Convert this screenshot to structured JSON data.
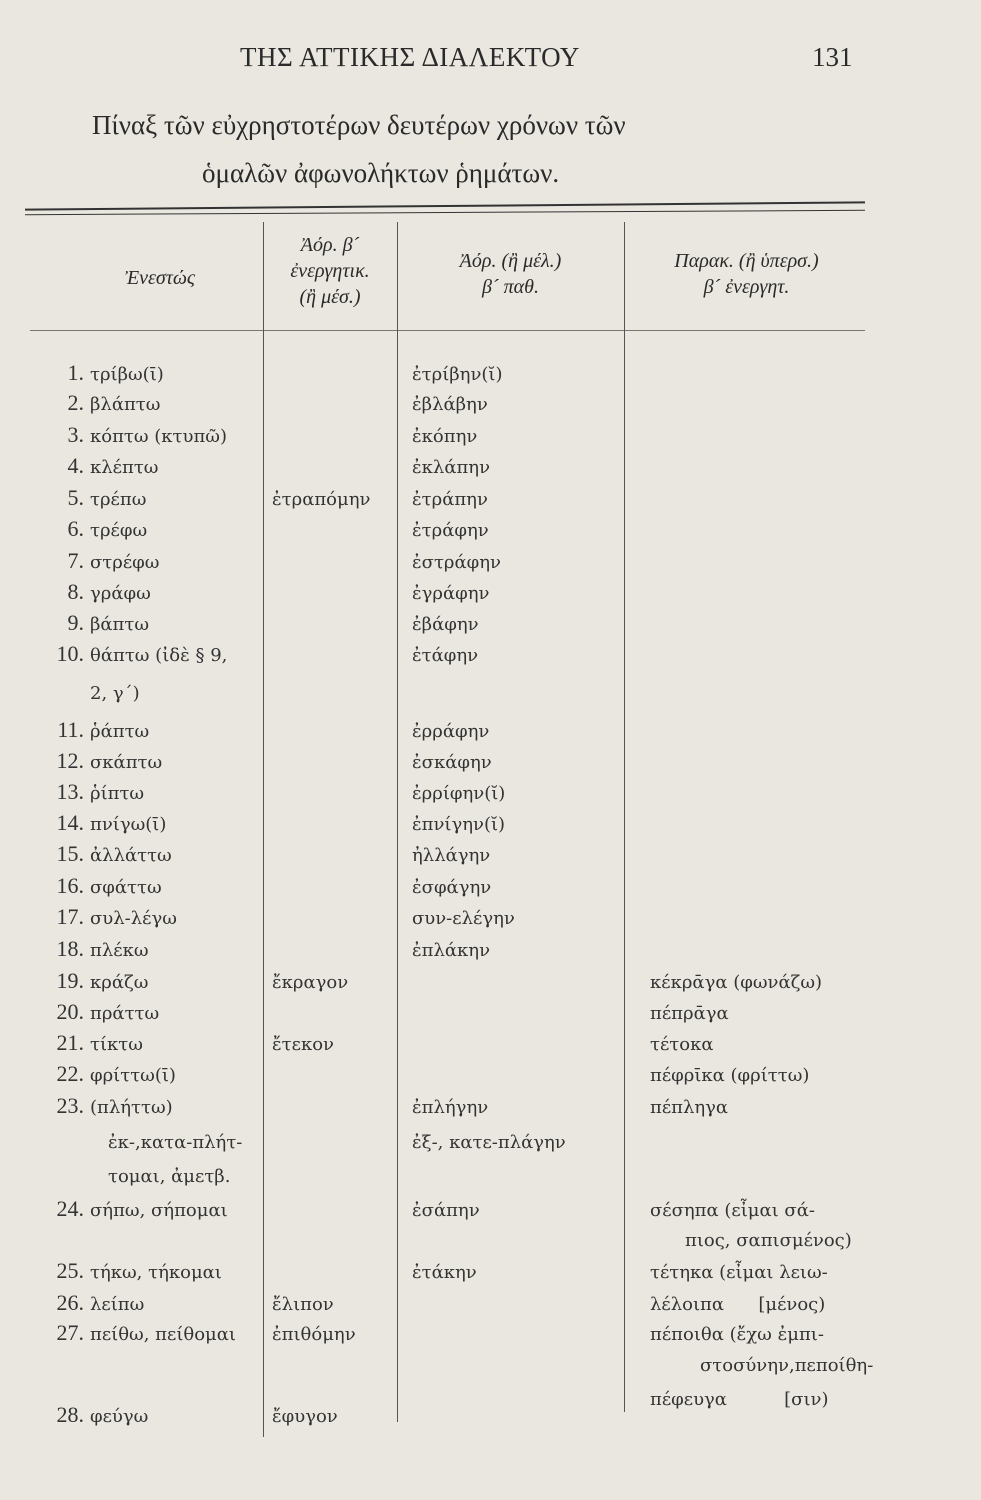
{
  "running_head": "ΤΗΣ ΑΤΤΙΚΗΣ ΔΙΑΛΕΚΤΟΥ",
  "page_number": "131",
  "title_line1": "Πίναξ τῶν εὐχρηστοτέρων δευτέρων χρόνων τῶν",
  "title_line2": "ὁμαλῶν ἀφωνολήκτων ῥημάτων.",
  "headers": {
    "present": "Ἐνεστώς",
    "aorist_active": [
      "Ἀόρ. β´",
      "ἐνεργητικ.",
      "(ἢ μέσ.)"
    ],
    "aorist_passive": [
      "Ἀόρ. (ἢ μέλ.)",
      "β´ παθ."
    ],
    "perfect": [
      "Παρακ. (ἢ ὑπερσ.)",
      "β´ ἐνεργητ."
    ]
  },
  "lines": [
    {
      "num": "1.",
      "present": "τρίβω(ῑ)",
      "aor_act": "",
      "aor_pass": "ἐτρίβην(ῐ)",
      "perfect": ""
    },
    {
      "num": "2.",
      "present": "βλάπτω",
      "aor_act": "",
      "aor_pass": "ἐβλάβην",
      "perfect": ""
    },
    {
      "num": "3.",
      "present": "κόπτω (κτυπῶ)",
      "aor_act": "",
      "aor_pass": "ἐκόπην",
      "perfect": ""
    },
    {
      "num": "4.",
      "present": "κλέπτω",
      "aor_act": "",
      "aor_pass": "ἐκλάπην",
      "perfect": ""
    },
    {
      "num": "5.",
      "present": "τρέπω",
      "aor_act": "ἐτραπόμην",
      "aor_pass": "ἐτράπην",
      "perfect": ""
    },
    {
      "num": "6.",
      "present": "τρέφω",
      "aor_act": "",
      "aor_pass": "ἐτράφην",
      "perfect": ""
    },
    {
      "num": "7.",
      "present": "στρέφω",
      "aor_act": "",
      "aor_pass": "ἐστράφην",
      "perfect": ""
    },
    {
      "num": "8.",
      "present": "γράφω",
      "aor_act": "",
      "aor_pass": "ἐγράφην",
      "perfect": ""
    },
    {
      "num": "9.",
      "present": "βάπτω",
      "aor_act": "",
      "aor_pass": "ἐβάφην",
      "perfect": ""
    },
    {
      "num": "10.",
      "present": "θάπτω (ἰδὲ § 9,",
      "aor_act": "",
      "aor_pass": "ἐτάφην",
      "perfect": ""
    },
    {
      "num": "",
      "present": "2, γ´)",
      "aor_act": "",
      "aor_pass": "",
      "perfect": ""
    },
    {
      "num": "11.",
      "present": "ῥάπτω",
      "aor_act": "",
      "aor_pass": "ἐρράφην",
      "perfect": ""
    },
    {
      "num": "12.",
      "present": "σκάπτω",
      "aor_act": "",
      "aor_pass": "ἐσκάφην",
      "perfect": ""
    },
    {
      "num": "13.",
      "present": "ῥίπτω",
      "aor_act": "",
      "aor_pass": "ἐρρίφην(ῐ)",
      "perfect": ""
    },
    {
      "num": "14.",
      "present": "πνίγω(ῑ)",
      "aor_act": "",
      "aor_pass": "ἐπνίγην(ῐ)",
      "perfect": ""
    },
    {
      "num": "15.",
      "present": "ἀλλάττω",
      "aor_act": "",
      "aor_pass": "ἠλλάγην",
      "perfect": ""
    },
    {
      "num": "16.",
      "present": "σφάττω",
      "aor_act": "",
      "aor_pass": "ἐσφάγην",
      "perfect": ""
    },
    {
      "num": "17.",
      "present": "συλ-λέγω",
      "aor_act": "",
      "aor_pass": "συν-ελέγην",
      "perfect": ""
    },
    {
      "num": "18.",
      "present": "πλέκω",
      "aor_act": "",
      "aor_pass": "ἐπλάκην",
      "perfect": ""
    },
    {
      "num": "19.",
      "present": "κράζω",
      "aor_act": "ἔκραγον",
      "aor_pass": "",
      "perfect": "κέκρᾱγα (φωνάζω)"
    },
    {
      "num": "20.",
      "present": "πράττω",
      "aor_act": "",
      "aor_pass": "",
      "perfect": "πέπρᾱγα"
    },
    {
      "num": "21.",
      "present": "τίκτω",
      "aor_act": "ἔτεκον",
      "aor_pass": "",
      "perfect": "τέτοκα"
    },
    {
      "num": "22.",
      "present": "φρίττω(ῑ)",
      "aor_act": "",
      "aor_pass": "",
      "perfect": "πέφρῑκα (φρίττω)"
    },
    {
      "num": "23.",
      "present": "(πλήττω)",
      "aor_act": "",
      "aor_pass": "ἐπλήγην",
      "perfect": "πέπληγα"
    },
    {
      "num": "",
      "present": "ἐκ-,κατα-πλήτ-",
      "aor_act": "",
      "aor_pass": "ἐξ-, κατε-πλάγην",
      "perfect": ""
    },
    {
      "num": "",
      "present": "τομαι, ἀμετβ.",
      "aor_act": "",
      "aor_pass": "",
      "perfect": ""
    },
    {
      "num": "24.",
      "present": "σήπω, σήπομαι",
      "aor_act": "",
      "aor_pass": "ἐσάπην",
      "perfect": "σέσηπα (εἶμαι σά-"
    },
    {
      "num": "",
      "present": "",
      "aor_act": "",
      "aor_pass": "",
      "perfect": "πιος, σαπισμένος)"
    },
    {
      "num": "25.",
      "present": "τήκω, τήκομαι",
      "aor_act": "",
      "aor_pass": "ἐτάκην",
      "perfect": "τέτηκα (εἶμαι λειω-"
    },
    {
      "num": "26.",
      "present": "λείπω",
      "aor_act": "ἔλιπον",
      "aor_pass": "",
      "perfect": "λέλοιπα      [μένος)"
    },
    {
      "num": "27.",
      "present": "πείθω, πείθομαι",
      "aor_act": "ἐπιθόμην",
      "aor_pass": "",
      "perfect": "πέποιθα (ἔχω ἐμπι-"
    },
    {
      "num": "",
      "present": "",
      "aor_act": "",
      "aor_pass": "",
      "perfect": "στοσύνην,πεποίθη-"
    },
    {
      "num": "",
      "present": "",
      "aor_act": "",
      "aor_pass": "",
      "perfect": "πέφευγα          [σιν)"
    },
    {
      "num": "28.",
      "present": "φεύγω",
      "aor_act": "ἔφυγον",
      "aor_pass": "",
      "perfect": ""
    }
  ]
}
